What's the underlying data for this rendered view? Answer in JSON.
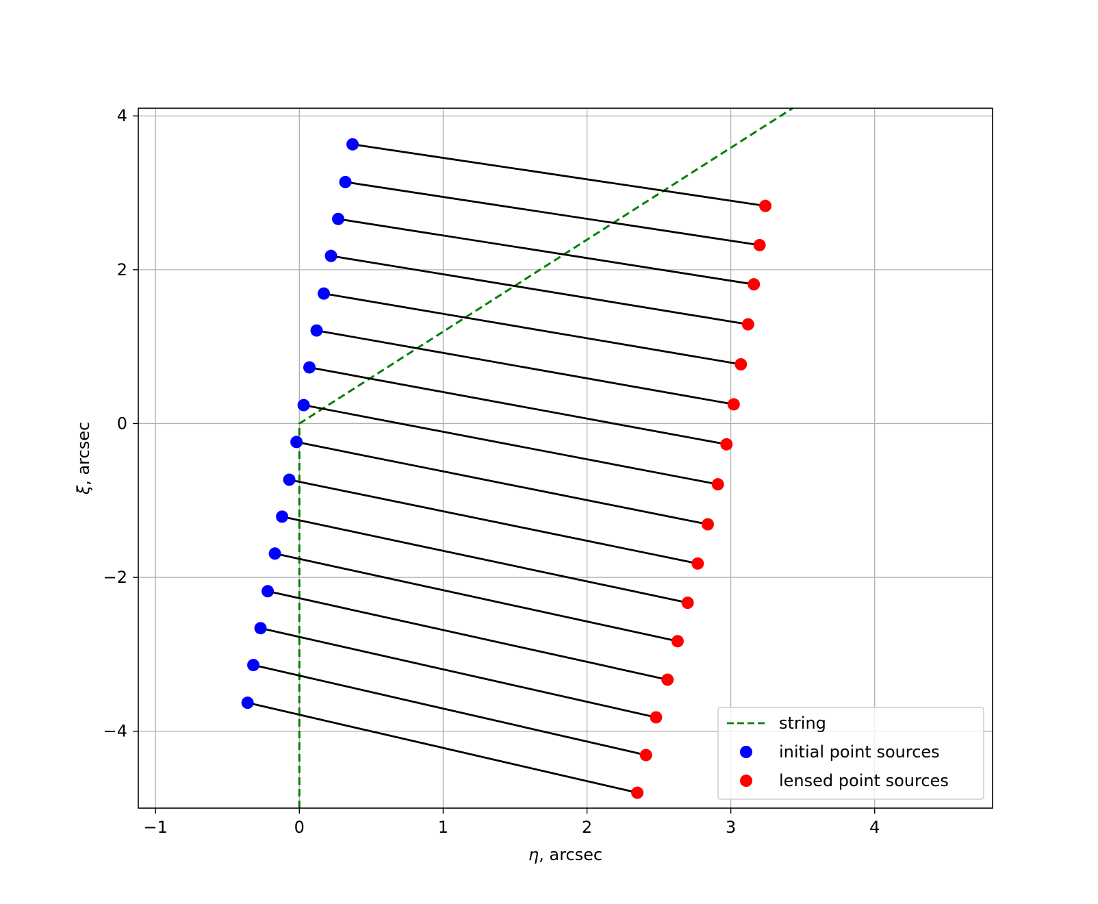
{
  "chart_data": {
    "type": "scatter",
    "title": "",
    "xlabel": {
      "symbol": "η",
      "text": ", arcsec"
    },
    "ylabel": {
      "symbol": "ξ",
      "text": ", arcsec"
    },
    "xlim": [
      -1.12,
      4.82
    ],
    "ylim": [
      -5.0,
      4.1
    ],
    "x_ticks": [
      -1,
      0,
      1,
      2,
      3,
      4
    ],
    "y_ticks": [
      -4,
      -2,
      0,
      2,
      4
    ],
    "x_tick_labels": [
      "−1",
      "0",
      "1",
      "2",
      "3",
      "4"
    ],
    "y_tick_labels": [
      "−4",
      "−2",
      "0",
      "2",
      "4"
    ],
    "grid": true,
    "legend_placement": "lower-right",
    "colors": {
      "string": "#008000",
      "initial": "#0000ff",
      "lensed": "#ff0000",
      "connector": "#000000",
      "grid": "#b0b0b0"
    },
    "series": [
      {
        "name": "string",
        "kind": "dashed-line",
        "x": [
          0,
          0,
          3.43
        ],
        "y": [
          -5.0,
          0,
          4.1
        ]
      },
      {
        "name": "initial point sources",
        "kind": "points",
        "x": [
          0.37,
          0.32,
          0.27,
          0.22,
          0.17,
          0.12,
          0.07,
          0.03,
          -0.02,
          -0.07,
          -0.12,
          -0.17,
          -0.22,
          -0.27,
          -0.32,
          -0.36
        ],
        "y": [
          3.63,
          3.14,
          2.66,
          2.18,
          1.69,
          1.21,
          0.73,
          0.24,
          -0.24,
          -0.73,
          -1.21,
          -1.69,
          -2.18,
          -2.66,
          -3.14,
          -3.63
        ]
      },
      {
        "name": "lensed point sources",
        "kind": "points",
        "x": [
          3.24,
          3.2,
          3.16,
          3.12,
          3.07,
          3.02,
          2.97,
          2.91,
          2.84,
          2.77,
          2.7,
          2.63,
          2.56,
          2.48,
          2.41,
          2.35
        ],
        "y": [
          2.83,
          2.32,
          1.81,
          1.29,
          0.77,
          0.25,
          -0.27,
          -0.79,
          -1.31,
          -1.82,
          -2.33,
          -2.83,
          -3.33,
          -3.82,
          -4.31,
          -4.8
        ]
      }
    ]
  }
}
